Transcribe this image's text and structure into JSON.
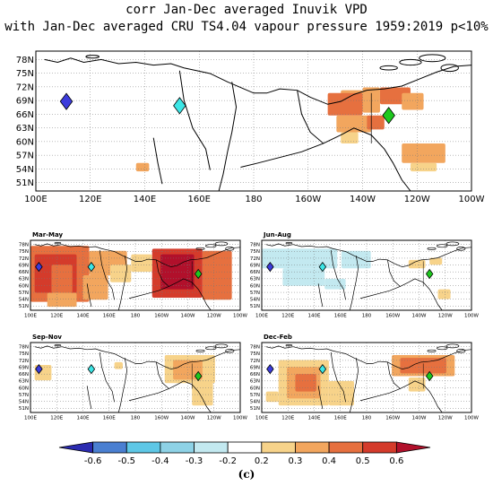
{
  "figure": {
    "title_line1": "corr Jan-Dec averaged Inuvik VPD",
    "title_line2": "with Jan-Dec averaged CRU TS4.04 vapour pressure 1959:2019 p<10%",
    "caption": "(c)"
  },
  "lat_ticks": [
    "78N",
    "75N",
    "72N",
    "69N",
    "66N",
    "63N",
    "60N",
    "57N",
    "54N",
    "51N"
  ],
  "lon_ticks": [
    "100E",
    "120E",
    "140E",
    "160E",
    "180",
    "160W",
    "140W",
    "120W",
    "100W"
  ],
  "panels": [
    {
      "id": "annual",
      "label": ""
    },
    {
      "id": "mam",
      "label": "Mar-May"
    },
    {
      "id": "jja",
      "label": "Jun-Aug"
    },
    {
      "id": "son",
      "label": "Sep-Nov"
    },
    {
      "id": "djf",
      "label": "Dec-Feb"
    }
  ],
  "markers": [
    {
      "name": "marker-blue",
      "color": "#3c3cdc"
    },
    {
      "name": "marker-cyan",
      "color": "#3ce6e6"
    },
    {
      "name": "marker-green",
      "color": "#1ec81e"
    }
  ],
  "colorbar": {
    "labels": [
      "-0.6",
      "-0.5",
      "-0.4",
      "-0.3",
      "-0.2",
      "0.2",
      "0.3",
      "0.4",
      "0.5",
      "0.6"
    ],
    "colors": [
      "#2b2bb0",
      "#4a7fd1",
      "#5ec7e6",
      "#8ed2e6",
      "#c3e9f0",
      "#ffffff",
      "#f7d38a",
      "#f2a65e",
      "#e6703f",
      "#d43b2b",
      "#b1102b"
    ]
  }
}
